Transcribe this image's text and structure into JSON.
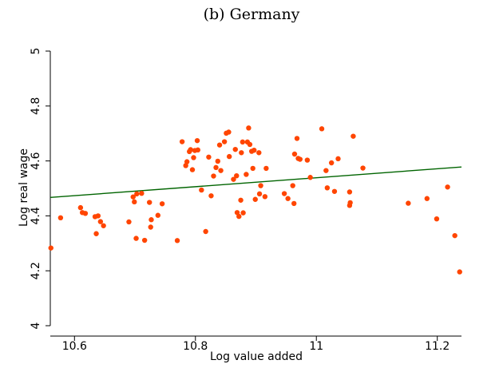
{
  "chart_data": {
    "type": "scatter",
    "title": "(b) Germany",
    "xlabel": "Log value added",
    "ylabel": "Log real wage",
    "xlim": [
      10.56,
      11.24
    ],
    "ylim": [
      4.0,
      5.0
    ],
    "xticks": [
      10.6,
      10.8,
      11,
      11.2
    ],
    "xtick_labels": [
      "10.6",
      "10.8",
      "11",
      "11.2"
    ],
    "yticks": [
      4.0,
      4.2,
      4.4,
      4.6,
      4.8,
      5.0
    ],
    "ytick_labels": [
      "4",
      "4.2",
      "4.4",
      "4.6",
      "4.8",
      "5"
    ],
    "grid": false,
    "legend": "none",
    "colors": {
      "points": "#ff4500",
      "fit_line": "#006400",
      "axis": "#000000"
    },
    "fit_line": {
      "x": [
        10.56,
        11.24
      ],
      "y": [
        4.467,
        4.578
      ]
    },
    "points": [
      {
        "x": 10.561,
        "y": 4.283
      },
      {
        "x": 10.577,
        "y": 4.393
      },
      {
        "x": 10.61,
        "y": 4.43
      },
      {
        "x": 10.613,
        "y": 4.412
      },
      {
        "x": 10.618,
        "y": 4.409
      },
      {
        "x": 10.634,
        "y": 4.397
      },
      {
        "x": 10.639,
        "y": 4.4
      },
      {
        "x": 10.636,
        "y": 4.335
      },
      {
        "x": 10.643,
        "y": 4.379
      },
      {
        "x": 10.648,
        "y": 4.364
      },
      {
        "x": 10.69,
        "y": 4.378
      },
      {
        "x": 10.697,
        "y": 4.469
      },
      {
        "x": 10.699,
        "y": 4.451
      },
      {
        "x": 10.703,
        "y": 4.48
      },
      {
        "x": 10.702,
        "y": 4.318
      },
      {
        "x": 10.711,
        "y": 4.482
      },
      {
        "x": 10.716,
        "y": 4.311
      },
      {
        "x": 10.724,
        "y": 4.449
      },
      {
        "x": 10.726,
        "y": 4.359
      },
      {
        "x": 10.727,
        "y": 4.386
      },
      {
        "x": 10.738,
        "y": 4.402
      },
      {
        "x": 10.745,
        "y": 4.444
      },
      {
        "x": 10.77,
        "y": 4.31
      },
      {
        "x": 10.778,
        "y": 4.67
      },
      {
        "x": 10.784,
        "y": 4.583
      },
      {
        "x": 10.786,
        "y": 4.597
      },
      {
        "x": 10.79,
        "y": 4.634
      },
      {
        "x": 10.792,
        "y": 4.641
      },
      {
        "x": 10.795,
        "y": 4.568
      },
      {
        "x": 10.797,
        "y": 4.612
      },
      {
        "x": 10.799,
        "y": 4.638
      },
      {
        "x": 10.803,
        "y": 4.674
      },
      {
        "x": 10.804,
        "y": 4.64
      },
      {
        "x": 10.81,
        "y": 4.494
      },
      {
        "x": 10.817,
        "y": 4.343
      },
      {
        "x": 10.822,
        "y": 4.614
      },
      {
        "x": 10.826,
        "y": 4.473
      },
      {
        "x": 10.83,
        "y": 4.545
      },
      {
        "x": 10.834,
        "y": 4.576
      },
      {
        "x": 10.837,
        "y": 4.599
      },
      {
        "x": 10.84,
        "y": 4.658
      },
      {
        "x": 10.842,
        "y": 4.565
      },
      {
        "x": 10.848,
        "y": 4.67
      },
      {
        "x": 10.851,
        "y": 4.701
      },
      {
        "x": 10.855,
        "y": 4.705
      },
      {
        "x": 10.856,
        "y": 4.616
      },
      {
        "x": 10.863,
        "y": 4.533
      },
      {
        "x": 10.866,
        "y": 4.642
      },
      {
        "x": 10.868,
        "y": 4.546
      },
      {
        "x": 10.869,
        "y": 4.412
      },
      {
        "x": 10.872,
        "y": 4.398
      },
      {
        "x": 10.876,
        "y": 4.63
      },
      {
        "x": 10.875,
        "y": 4.457
      },
      {
        "x": 10.878,
        "y": 4.669
      },
      {
        "x": 10.879,
        "y": 4.411
      },
      {
        "x": 10.884,
        "y": 4.551
      },
      {
        "x": 10.886,
        "y": 4.669
      },
      {
        "x": 10.888,
        "y": 4.72
      },
      {
        "x": 10.89,
        "y": 4.66
      },
      {
        "x": 10.893,
        "y": 4.635
      },
      {
        "x": 10.895,
        "y": 4.573
      },
      {
        "x": 10.897,
        "y": 4.639
      },
      {
        "x": 10.899,
        "y": 4.46
      },
      {
        "x": 10.905,
        "y": 4.63
      },
      {
        "x": 10.906,
        "y": 4.48
      },
      {
        "x": 10.908,
        "y": 4.51
      },
      {
        "x": 10.915,
        "y": 4.47
      },
      {
        "x": 10.917,
        "y": 4.573
      },
      {
        "x": 10.947,
        "y": 4.481
      },
      {
        "x": 10.953,
        "y": 4.463
      },
      {
        "x": 10.961,
        "y": 4.51
      },
      {
        "x": 10.963,
        "y": 4.445
      },
      {
        "x": 10.964,
        "y": 4.625
      },
      {
        "x": 10.968,
        "y": 4.682
      },
      {
        "x": 10.97,
        "y": 4.609
      },
      {
        "x": 10.973,
        "y": 4.606
      },
      {
        "x": 10.985,
        "y": 4.603
      },
      {
        "x": 10.99,
        "y": 4.54
      },
      {
        "x": 11.009,
        "y": 4.717
      },
      {
        "x": 11.016,
        "y": 4.565
      },
      {
        "x": 11.018,
        "y": 4.502
      },
      {
        "x": 11.025,
        "y": 4.593
      },
      {
        "x": 11.03,
        "y": 4.489
      },
      {
        "x": 11.036,
        "y": 4.608
      },
      {
        "x": 11.055,
        "y": 4.487
      },
      {
        "x": 11.056,
        "y": 4.448
      },
      {
        "x": 11.055,
        "y": 4.438
      },
      {
        "x": 11.061,
        "y": 4.69
      },
      {
        "x": 11.077,
        "y": 4.574
      },
      {
        "x": 11.152,
        "y": 4.446
      },
      {
        "x": 11.183,
        "y": 4.463
      },
      {
        "x": 11.199,
        "y": 4.389
      },
      {
        "x": 11.217,
        "y": 4.505
      },
      {
        "x": 11.229,
        "y": 4.328
      },
      {
        "x": 11.237,
        "y": 4.196
      }
    ]
  }
}
